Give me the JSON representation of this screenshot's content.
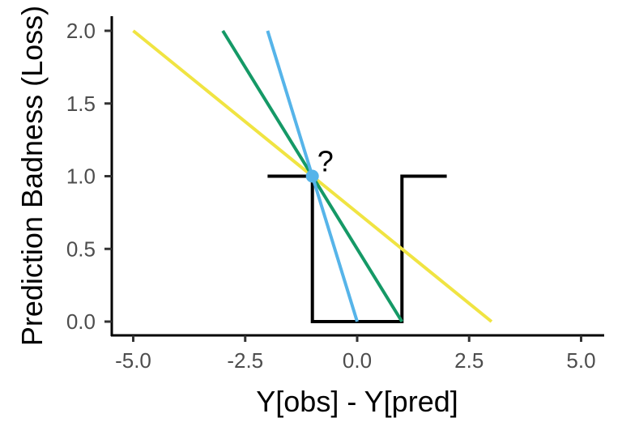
{
  "chart_data": {
    "type": "line",
    "title": "",
    "xlabel": "Y[obs] - Y[pred]",
    "ylabel": "Prediction Badness (Loss)",
    "xlim": [
      -5.5,
      5.5
    ],
    "ylim": [
      -0.1,
      2.1
    ],
    "xticks": [
      -5.0,
      -2.5,
      0.0,
      2.5,
      5.0
    ],
    "xtick_labels": [
      "-5.0",
      "-2.5",
      "0.0",
      "2.5",
      "5.0"
    ],
    "yticks": [
      0.0,
      0.5,
      1.0,
      1.5,
      2.0
    ],
    "ytick_labels": [
      "0.0",
      "0.5",
      "1.0",
      "1.5",
      "2.0"
    ],
    "grid": false,
    "series": [
      {
        "color": "#000000",
        "x": [
          -2,
          -1,
          -1,
          1,
          1,
          2
        ],
        "y": [
          1,
          1,
          0,
          0,
          1,
          1
        ]
      },
      {
        "color": "#F0E442",
        "x": [
          -5,
          3
        ],
        "y": [
          2,
          0
        ]
      },
      {
        "color": "#159966",
        "x": [
          -3,
          1
        ],
        "y": [
          2,
          0
        ]
      },
      {
        "color": "#56B4E9",
        "x": [
          -2,
          0
        ],
        "y": [
          2,
          0
        ]
      }
    ],
    "points": [
      {
        "x": -1,
        "y": 1,
        "color": "#56B4E9"
      }
    ],
    "annotations": [
      {
        "x": -1,
        "y": 1,
        "text": "?"
      }
    ]
  }
}
